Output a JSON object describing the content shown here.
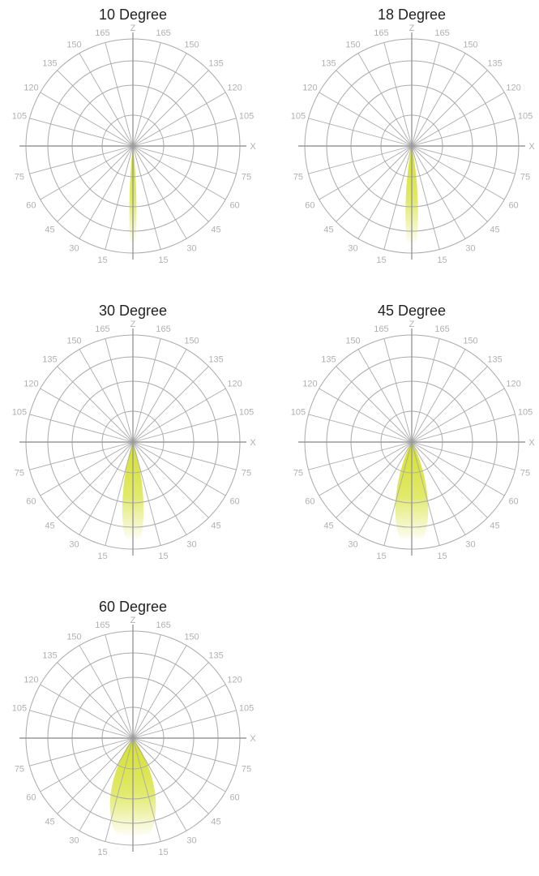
{
  "chart_data": [
    {
      "type": "polar",
      "title": "10 Degree",
      "beam_angle": 10
    },
    {
      "type": "polar",
      "title": "18 Degree",
      "beam_angle": 18
    },
    {
      "type": "polar",
      "title": "30 Degree",
      "beam_angle": 30
    },
    {
      "type": "polar",
      "title": "45 Degree",
      "beam_angle": 45
    },
    {
      "type": "polar",
      "title": "60 Degree",
      "beam_angle": 60
    }
  ],
  "angle_labels": {
    "upper": [
      "165",
      "150",
      "135",
      "120",
      "105"
    ],
    "lower": [
      "75",
      "60",
      "45",
      "30",
      "15"
    ],
    "z_axis": "Z",
    "x_axis": "X"
  },
  "colors": {
    "grid": "#aaaaaa",
    "axis": "#999999",
    "label": "#b0b0b0",
    "beam": "#d4e02a"
  }
}
